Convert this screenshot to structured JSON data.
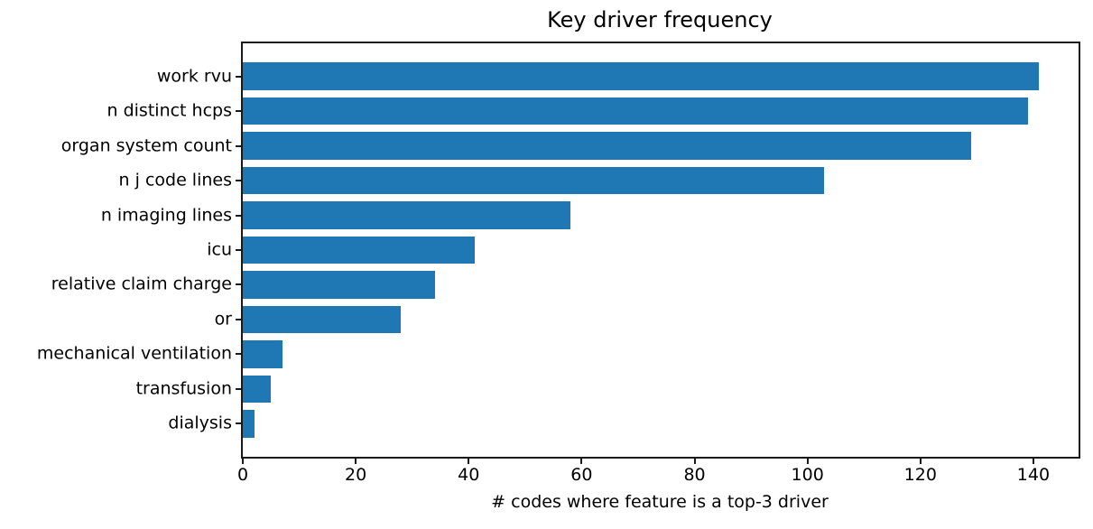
{
  "chart_data": {
    "type": "bar",
    "orientation": "horizontal",
    "title": "Key driver frequency",
    "xlabel": "# codes where feature is a top-3 driver",
    "ylabel": "",
    "categories": [
      "work rvu",
      "n distinct hcps",
      "organ system count",
      "n j code lines",
      "n imaging lines",
      "icu",
      "relative claim charge",
      "or",
      "mechanical ventilation",
      "transfusion",
      "dialysis"
    ],
    "values": [
      141,
      139,
      129,
      103,
      58,
      41,
      34,
      28,
      7,
      5,
      2
    ],
    "xticks": [
      0,
      20,
      40,
      60,
      80,
      100,
      120,
      140
    ],
    "xlim": [
      0,
      148
    ],
    "bar_color": "#1f77b4",
    "axis_color": "#1a1a1a",
    "grid": false,
    "legend": null
  }
}
